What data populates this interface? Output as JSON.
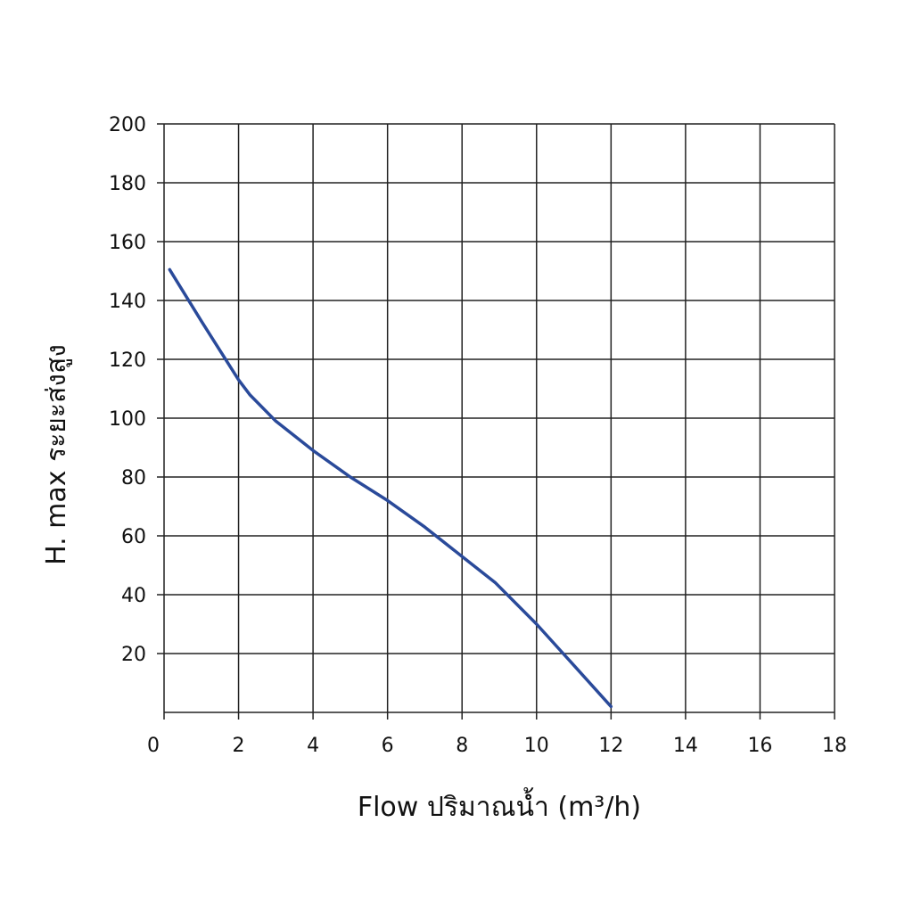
{
  "chart_data": {
    "type": "line",
    "xlabel": "Flow  ปริมาณน้ำ (m³/h)",
    "ylabel": "H. max  ระยะส่งสูง",
    "xlim": [
      0,
      18
    ],
    "ylim": [
      0,
      200
    ],
    "x_ticks": [
      0,
      2,
      4,
      6,
      8,
      10,
      12,
      14,
      16,
      18
    ],
    "y_ticks": [
      20,
      40,
      60,
      80,
      100,
      120,
      140,
      160,
      180,
      200
    ],
    "x_tick_labels": [
      "0",
      "2",
      "4",
      "6",
      "8",
      "10",
      "12",
      "14",
      "16",
      "18"
    ],
    "y_tick_labels": [
      "20",
      "40",
      "60",
      "80",
      "100",
      "120",
      "140",
      "160",
      "180",
      "200"
    ],
    "grid": true,
    "series": [
      {
        "color": "#2a4a9a",
        "x": [
          0.15,
          1.0,
          2.0,
          2.3,
          3.0,
          4.0,
          5.0,
          6.0,
          7.0,
          8.0,
          8.9,
          10.0,
          11.0,
          12.0
        ],
        "y": [
          150.5,
          133,
          113,
          108,
          99,
          89,
          80,
          72,
          63,
          53,
          44,
          30,
          16,
          2
        ]
      }
    ]
  }
}
